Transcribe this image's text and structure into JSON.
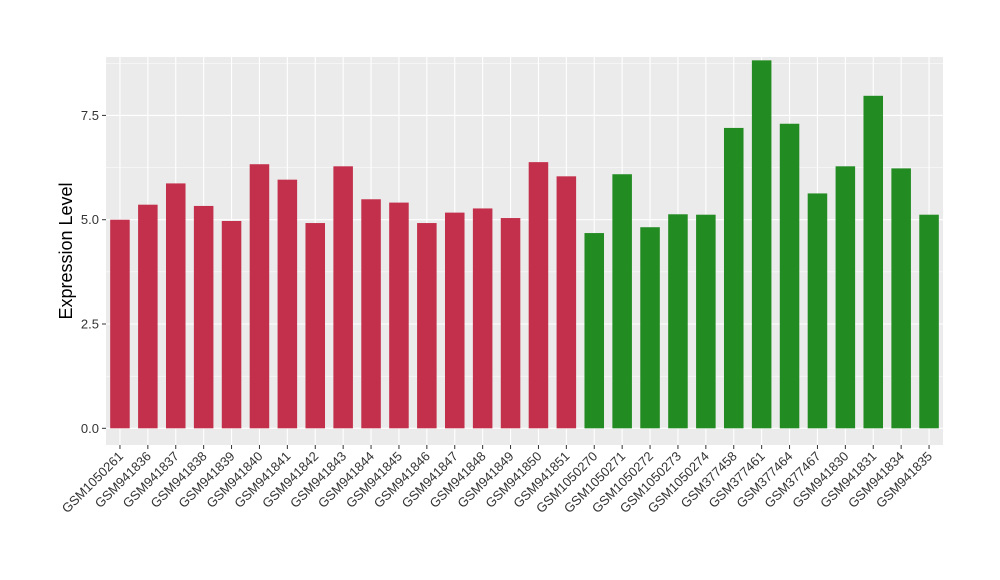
{
  "chart_data": {
    "type": "bar",
    "ylabel": "Expression Level",
    "xlabel": "",
    "ylim": [
      -0.4,
      8.9
    ],
    "yticks": [
      0.0,
      2.5,
      5.0,
      7.5
    ],
    "ytick_labels": [
      "0.0",
      "2.5",
      "5.0",
      "7.5"
    ],
    "grid": true,
    "colors": {
      "group1": "#C3304B",
      "group2": "#228B22",
      "panel": "#EBEBEB",
      "grid": "#FFFFFF"
    },
    "categories": [
      "GSM1050261",
      "GSM941836",
      "GSM941837",
      "GSM941838",
      "GSM941839",
      "GSM941840",
      "GSM941841",
      "GSM941842",
      "GSM941843",
      "GSM941844",
      "GSM941845",
      "GSM941846",
      "GSM941847",
      "GSM941848",
      "GSM941849",
      "GSM941850",
      "GSM941851",
      "GSM1050270",
      "GSM1050271",
      "GSM1050272",
      "GSM1050273",
      "GSM1050274",
      "GSM377458",
      "GSM377461",
      "GSM377464",
      "GSM377467",
      "GSM941830",
      "GSM941831",
      "GSM941834",
      "GSM941835"
    ],
    "values": [
      5.0,
      5.36,
      5.87,
      5.33,
      4.97,
      6.33,
      5.96,
      4.92,
      6.28,
      5.49,
      5.41,
      4.92,
      5.17,
      5.27,
      5.04,
      6.38,
      6.04,
      4.68,
      6.09,
      4.82,
      5.13,
      5.12,
      7.2,
      8.82,
      7.3,
      5.63,
      6.28,
      7.97,
      6.23,
      5.12
    ],
    "groups": [
      1,
      1,
      1,
      1,
      1,
      1,
      1,
      1,
      1,
      1,
      1,
      1,
      1,
      1,
      1,
      1,
      1,
      2,
      2,
      2,
      2,
      2,
      2,
      2,
      2,
      2,
      2,
      2,
      2,
      2
    ]
  }
}
